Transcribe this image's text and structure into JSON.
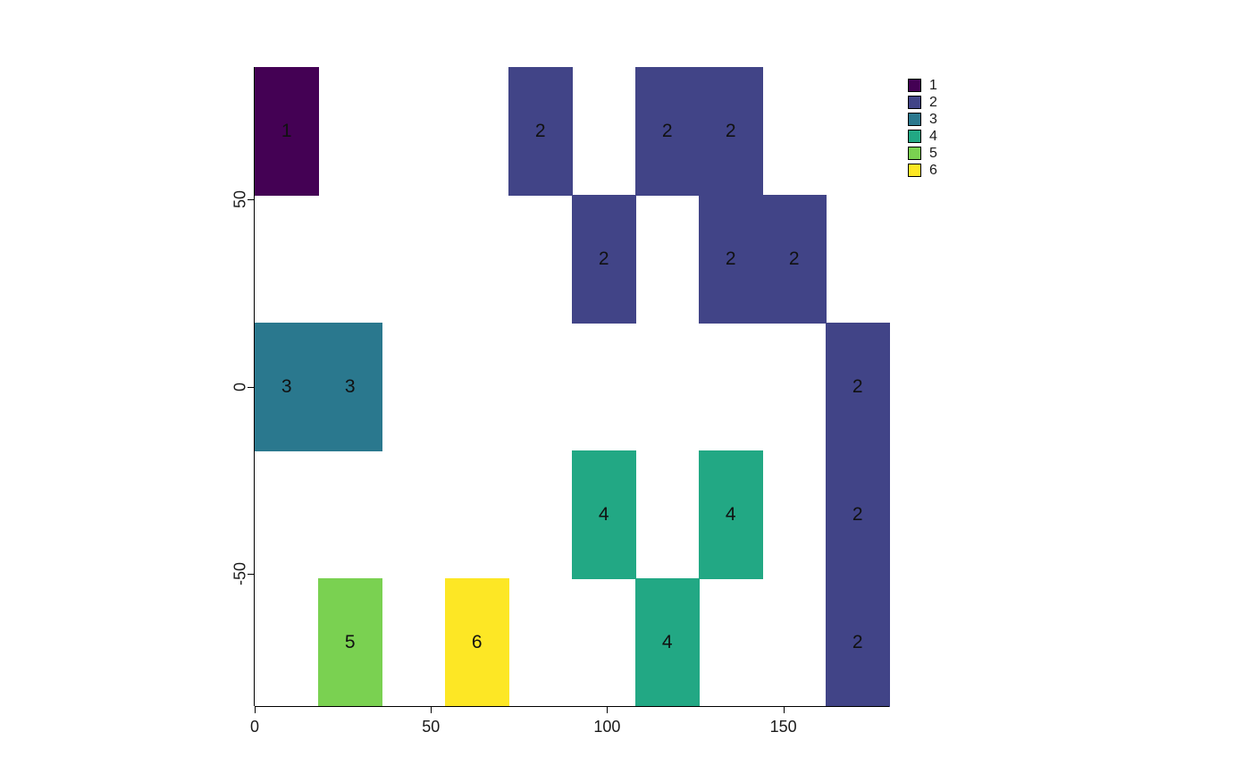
{
  "chart_data": {
    "type": "heatmap",
    "title": "",
    "xlabel": "",
    "ylabel": "",
    "x_range": [
      0,
      180
    ],
    "y_range": [
      -85.5,
      85.5
    ],
    "x_ticks": [
      "0",
      "50",
      "100",
      "150"
    ],
    "x_tick_values": [
      0,
      50,
      100,
      150
    ],
    "y_ticks": [
      "50",
      "0",
      "-50"
    ],
    "y_tick_values": [
      50,
      0,
      -50
    ],
    "grid": {
      "cols": 10,
      "rows": 5
    },
    "cells": [
      {
        "col": 0,
        "row": 0,
        "value": "1"
      },
      {
        "col": 4,
        "row": 0,
        "value": "2"
      },
      {
        "col": 6,
        "row": 0,
        "value": "2"
      },
      {
        "col": 7,
        "row": 0,
        "value": "2"
      },
      {
        "col": 5,
        "row": 1,
        "value": "2"
      },
      {
        "col": 7,
        "row": 1,
        "value": "2"
      },
      {
        "col": 8,
        "row": 1,
        "value": "2"
      },
      {
        "col": 0,
        "row": 2,
        "value": "3"
      },
      {
        "col": 1,
        "row": 2,
        "value": "3"
      },
      {
        "col": 9,
        "row": 2,
        "value": "2"
      },
      {
        "col": 5,
        "row": 3,
        "value": "4"
      },
      {
        "col": 7,
        "row": 3,
        "value": "4"
      },
      {
        "col": 9,
        "row": 3,
        "value": "2"
      },
      {
        "col": 1,
        "row": 4,
        "value": "5"
      },
      {
        "col": 3,
        "row": 4,
        "value": "6"
      },
      {
        "col": 6,
        "row": 4,
        "value": "4"
      },
      {
        "col": 9,
        "row": 4,
        "value": "2"
      }
    ],
    "legend_position": "top-right-outside",
    "legend": [
      {
        "label": "1",
        "color": "#440154"
      },
      {
        "label": "2",
        "color": "#414487"
      },
      {
        "label": "3",
        "color": "#2A788E"
      },
      {
        "label": "4",
        "color": "#22A884"
      },
      {
        "label": "5",
        "color": "#7AD151"
      },
      {
        "label": "6",
        "color": "#FDE725"
      }
    ],
    "background_color": "#FFFFFF",
    "grid_lines": false
  }
}
